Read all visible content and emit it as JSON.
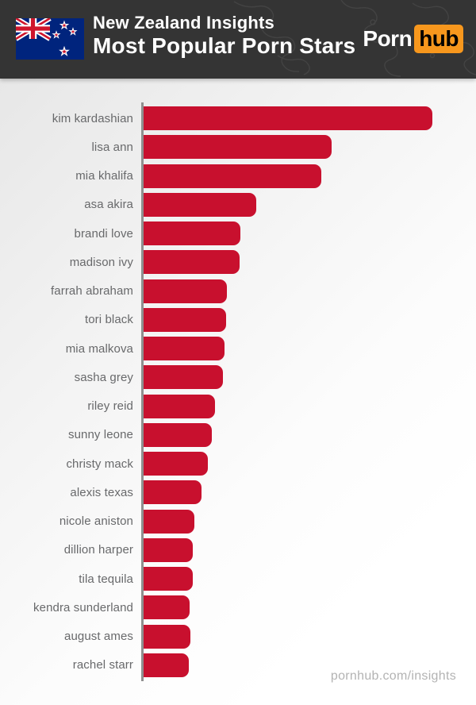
{
  "header": {
    "title_line1": "New Zealand Insights",
    "title_line2": "Most Popular Porn Stars",
    "flag": "new-zealand-flag",
    "logo": {
      "part1": "Porn",
      "part2": "hub"
    },
    "colors": {
      "header_bg": "#343434",
      "logo_orange": "#f7971d",
      "logo_hub_text": "#000000",
      "title_text": "#ffffff"
    }
  },
  "footer": {
    "url": "pornhub.com/insights"
  },
  "chart_data": {
    "type": "bar",
    "orientation": "horizontal",
    "title": "Most Popular Porn Stars",
    "subtitle": "New Zealand Insights",
    "xlabel": "",
    "ylabel": "",
    "grid": false,
    "legend": "none",
    "value_axis_labels_visible": false,
    "values_note": "no numeric axis shown; values are relative bar lengths, 100 = longest bar",
    "categories": [
      "kim kardashian",
      "lisa ann",
      "mia khalifa",
      "asa akira",
      "brandi love",
      "madison ivy",
      "farrah abraham",
      "tori black",
      "mia malkova",
      "sasha grey",
      "riley reid",
      "sunny leone",
      "christy mack",
      "alexis texas",
      "nicole aniston",
      "dillion harper",
      "tila tequila",
      "kendra sunderland",
      "august ames",
      "rachel starr"
    ],
    "values": [
      100,
      65.1,
      61.5,
      39.0,
      33.5,
      33.2,
      28.8,
      28.6,
      28.0,
      27.5,
      24.7,
      23.6,
      22.3,
      20.1,
      17.6,
      17.0,
      17.0,
      15.9,
      16.2,
      15.7
    ],
    "bar_color": "#c8102e",
    "label_color": "#68696b",
    "axis_line_color": "#8f8f8f"
  }
}
